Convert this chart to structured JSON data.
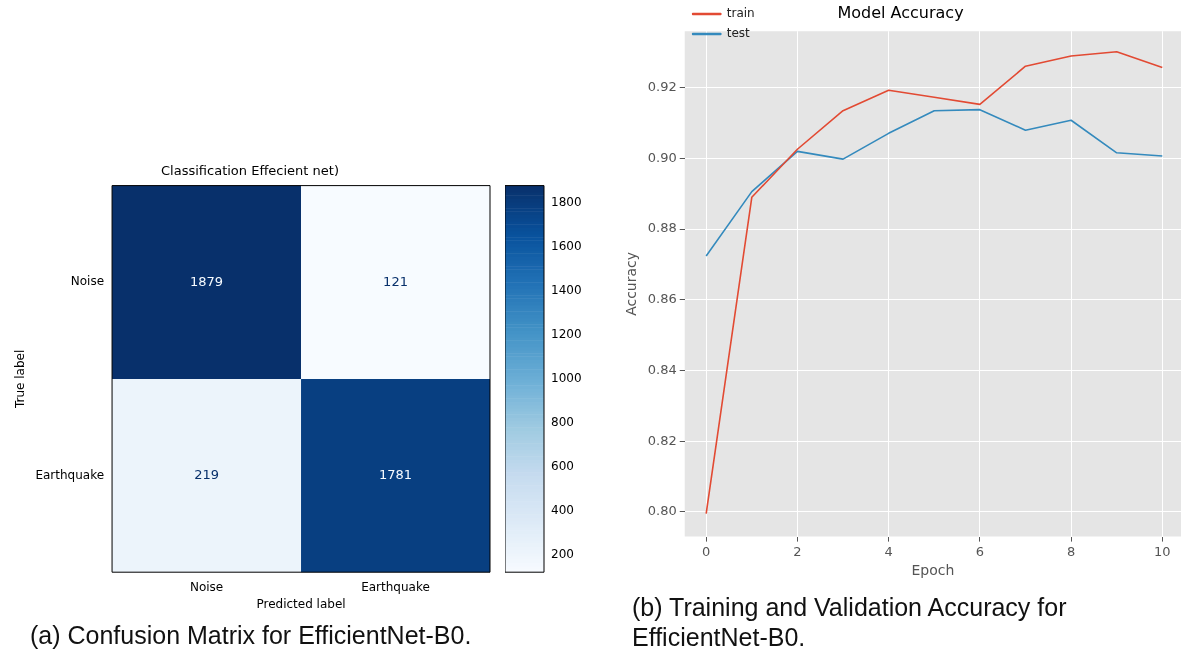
{
  "chart_data": [
    {
      "type": "heatmap",
      "title": "Classification Effecient net)",
      "xlabel": "Predicted label",
      "ylabel": "True label",
      "categories": [
        "Noise",
        "Earthquake"
      ],
      "y_categories": [
        "Noise",
        "Earthquake"
      ],
      "cells": [
        [
          1879,
          121
        ],
        [
          219,
          1781
        ]
      ],
      "data_labels": true,
      "clim": [
        121,
        1879
      ],
      "cticks": [
        200,
        400,
        600,
        800,
        1000,
        1200,
        1400,
        1600,
        1800
      ],
      "annotations": [
        "(a)  Confusion Matrix for EfficientNet-B0."
      ]
    },
    {
      "type": "line",
      "title": "Model Accuracy",
      "xlabel": "Epoch",
      "ylabel": "Accuracy",
      "x": [
        0,
        1,
        2,
        3,
        4,
        5,
        6,
        7,
        8,
        9,
        10
      ],
      "series": [
        {
          "name": "train",
          "color": "#e24a33",
          "values": [
            0.7995,
            0.889,
            0.9026,
            0.9135,
            0.9193,
            0.9173,
            0.9153,
            0.9261,
            0.929,
            0.9302,
            0.9257
          ]
        },
        {
          "name": "test",
          "color": "#348abd",
          "values": [
            0.8724,
            0.8906,
            0.902,
            0.8998,
            0.9071,
            0.9135,
            0.9138,
            0.908,
            0.9108,
            0.9016,
            0.9007
          ]
        }
      ],
      "xlim": [
        -0.47,
        10.41
      ],
      "xticks": [
        0,
        2,
        4,
        6,
        8,
        10
      ],
      "ylim": [
        0.793,
        0.936
      ],
      "yticks": [
        {
          "value": 0.8,
          "label": "0.80"
        },
        {
          "value": 0.82,
          "label": "0.82"
        },
        {
          "value": 0.84,
          "label": "0.84"
        },
        {
          "value": 0.86,
          "label": "0.86"
        },
        {
          "value": 0.88,
          "label": "0.88"
        },
        {
          "value": 0.9,
          "label": "0.90"
        },
        {
          "value": 0.92,
          "label": "0.92"
        }
      ],
      "grid": true,
      "legend": "top left",
      "marker": "none",
      "line_style": "solid",
      "annotations": [
        "(b)  Training and Validation Accuracy for EfficientNet-B0."
      ]
    }
  ]
}
